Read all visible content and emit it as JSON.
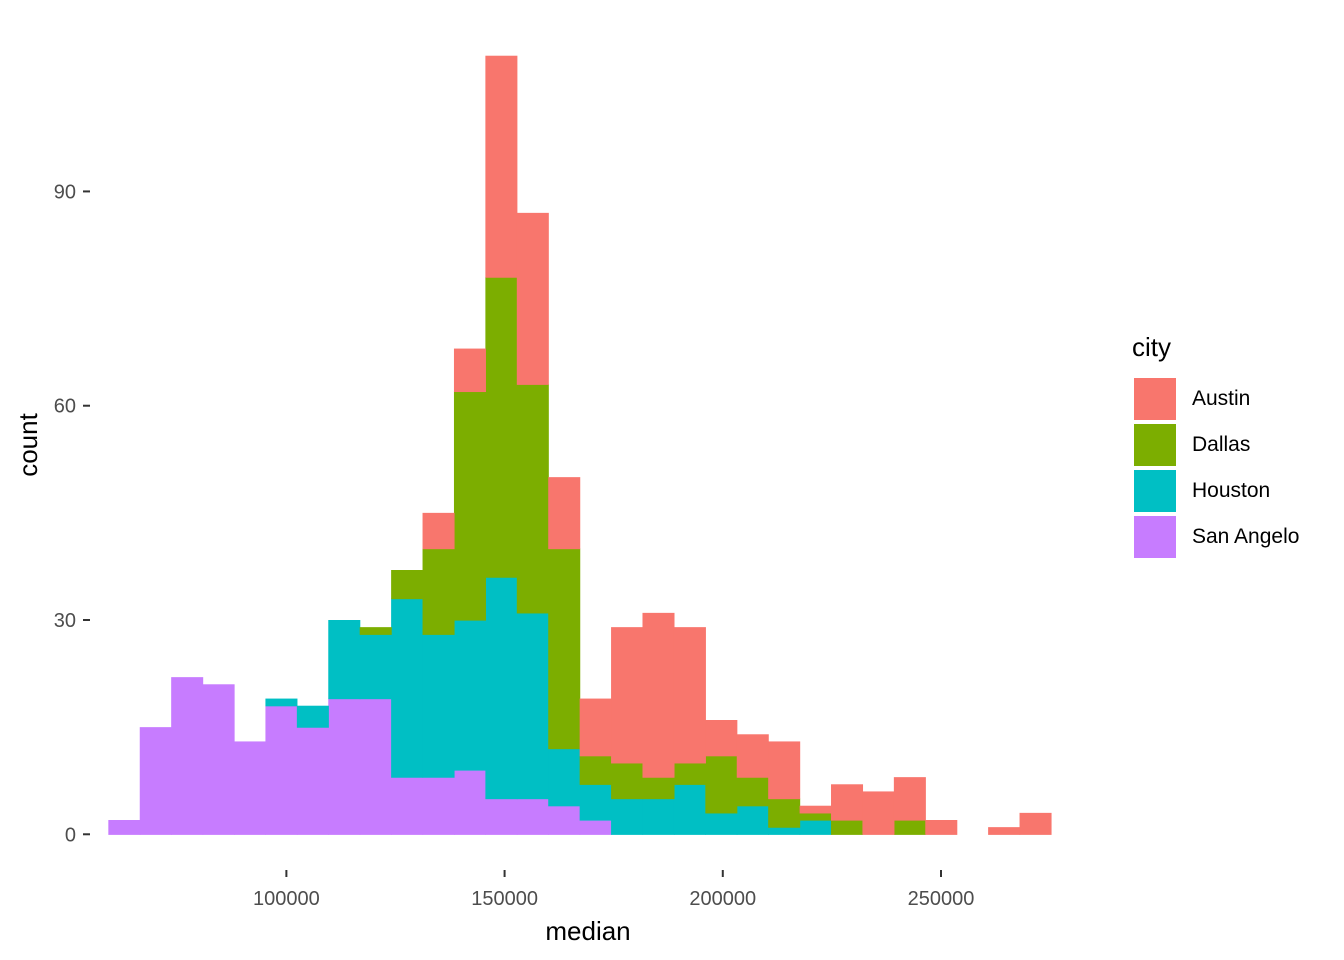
{
  "chart_data": {
    "type": "bar",
    "stacked": true,
    "xlabel": "median",
    "ylabel": "count",
    "x_ticks": [
      100000,
      150000,
      200000,
      250000
    ],
    "y_ticks": [
      0,
      30,
      60,
      90
    ],
    "xlim": [
      55000,
      283000
    ],
    "ylim": [
      -5,
      114
    ],
    "bin_width": 7200,
    "bin_centers": [
      62800,
      70000,
      77200,
      84400,
      91600,
      98800,
      106000,
      113200,
      120400,
      127600,
      134800,
      142000,
      149200,
      156400,
      163600,
      170800,
      178000,
      185200,
      192400,
      199600,
      206800,
      214000,
      221200,
      228400,
      235600,
      242800,
      250000,
      257200,
      264400,
      271600
    ],
    "legend_title": "city",
    "series": [
      {
        "name": "San Angelo",
        "color": "#C77CFF",
        "values": [
          2,
          15,
          22,
          21,
          13,
          18,
          15,
          19,
          19,
          8,
          8,
          9,
          5,
          5,
          4,
          2,
          0,
          0,
          0,
          0,
          0,
          0,
          0,
          0,
          0,
          0,
          0,
          0,
          0,
          0
        ]
      },
      {
        "name": "Houston",
        "color": "#00BFC4",
        "values": [
          0,
          0,
          0,
          0,
          0,
          1,
          3,
          11,
          9,
          25,
          20,
          21,
          31,
          26,
          8,
          5,
          5,
          5,
          7,
          3,
          4,
          1,
          2,
          0,
          0,
          0,
          0,
          0,
          0,
          0
        ]
      },
      {
        "name": "Dallas",
        "color": "#7CAE00",
        "values": [
          0,
          0,
          0,
          0,
          0,
          0,
          0,
          0,
          1,
          4,
          12,
          32,
          42,
          32,
          28,
          4,
          5,
          3,
          3,
          8,
          4,
          4,
          1,
          2,
          0,
          2,
          0,
          0,
          0,
          0
        ]
      },
      {
        "name": "Austin",
        "color": "#F8766D",
        "values": [
          0,
          0,
          0,
          0,
          0,
          0,
          0,
          0,
          0,
          0,
          5,
          6,
          31,
          24,
          10,
          8,
          19,
          23,
          19,
          5,
          6,
          8,
          1,
          5,
          6,
          6,
          2,
          0,
          1,
          3
        ]
      }
    ],
    "legend_order": [
      "Austin",
      "Dallas",
      "Houston",
      "San Angelo"
    ],
    "grid": false,
    "legend_position": "right"
  }
}
